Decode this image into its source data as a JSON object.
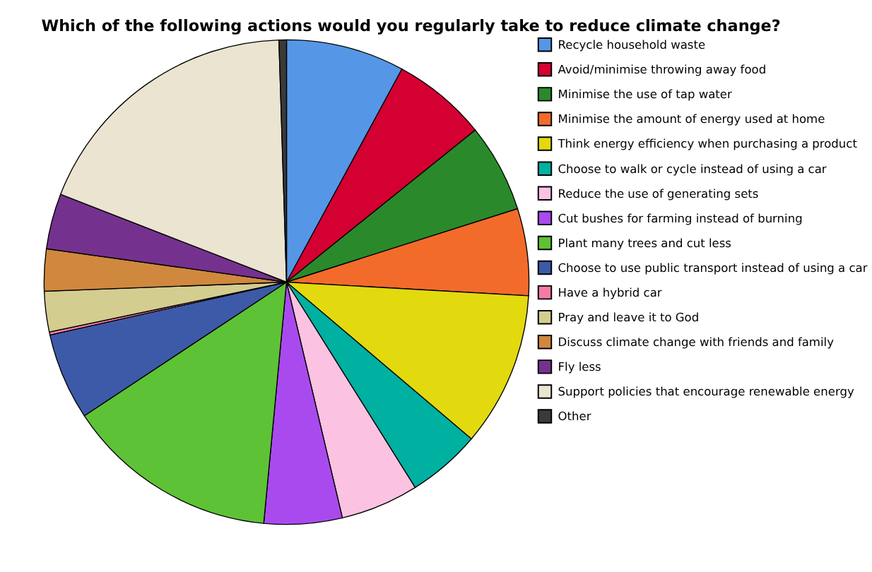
{
  "chart_data": {
    "type": "pie",
    "title": "Which of the following actions would you regularly take to reduce climate change?",
    "categories": [
      "Recycle household waste",
      "Avoid/minimise throwing away food",
      "Minimise the use of tap water",
      "Minimise the amount of energy used at home",
      "Think energy efficiency when purchasing a product",
      "Choose to walk or cycle instead of using a car",
      "Reduce the use of generating sets",
      "Cut bushes for farming instead of burning",
      "Plant many trees and cut less",
      "Choose to use public transport instead of using a car",
      "Have a hybrid car",
      "Pray and leave it to God",
      "Discuss climate change with friends and family",
      "Fly less",
      "Support policies that encourage renewable energy",
      "Other"
    ],
    "values": [
      7.9,
      6.3,
      5.9,
      5.8,
      10.3,
      4.9,
      5.2,
      5.2,
      14.2,
      5.8,
      0.2,
      2.7,
      2.8,
      3.7,
      18.6,
      0.5
    ],
    "colors": [
      "#5596e6",
      "#d50032",
      "#2a8a2b",
      "#f36b2b",
      "#e2d90f",
      "#00b0a0",
      "#fcc2e2",
      "#a94aef",
      "#5ec236",
      "#3d5aa9",
      "#f47ca5",
      "#d3cd8f",
      "#d0883f",
      "#74328e",
      "#eae4d1",
      "#3a3a3a"
    ],
    "legend": "right"
  }
}
